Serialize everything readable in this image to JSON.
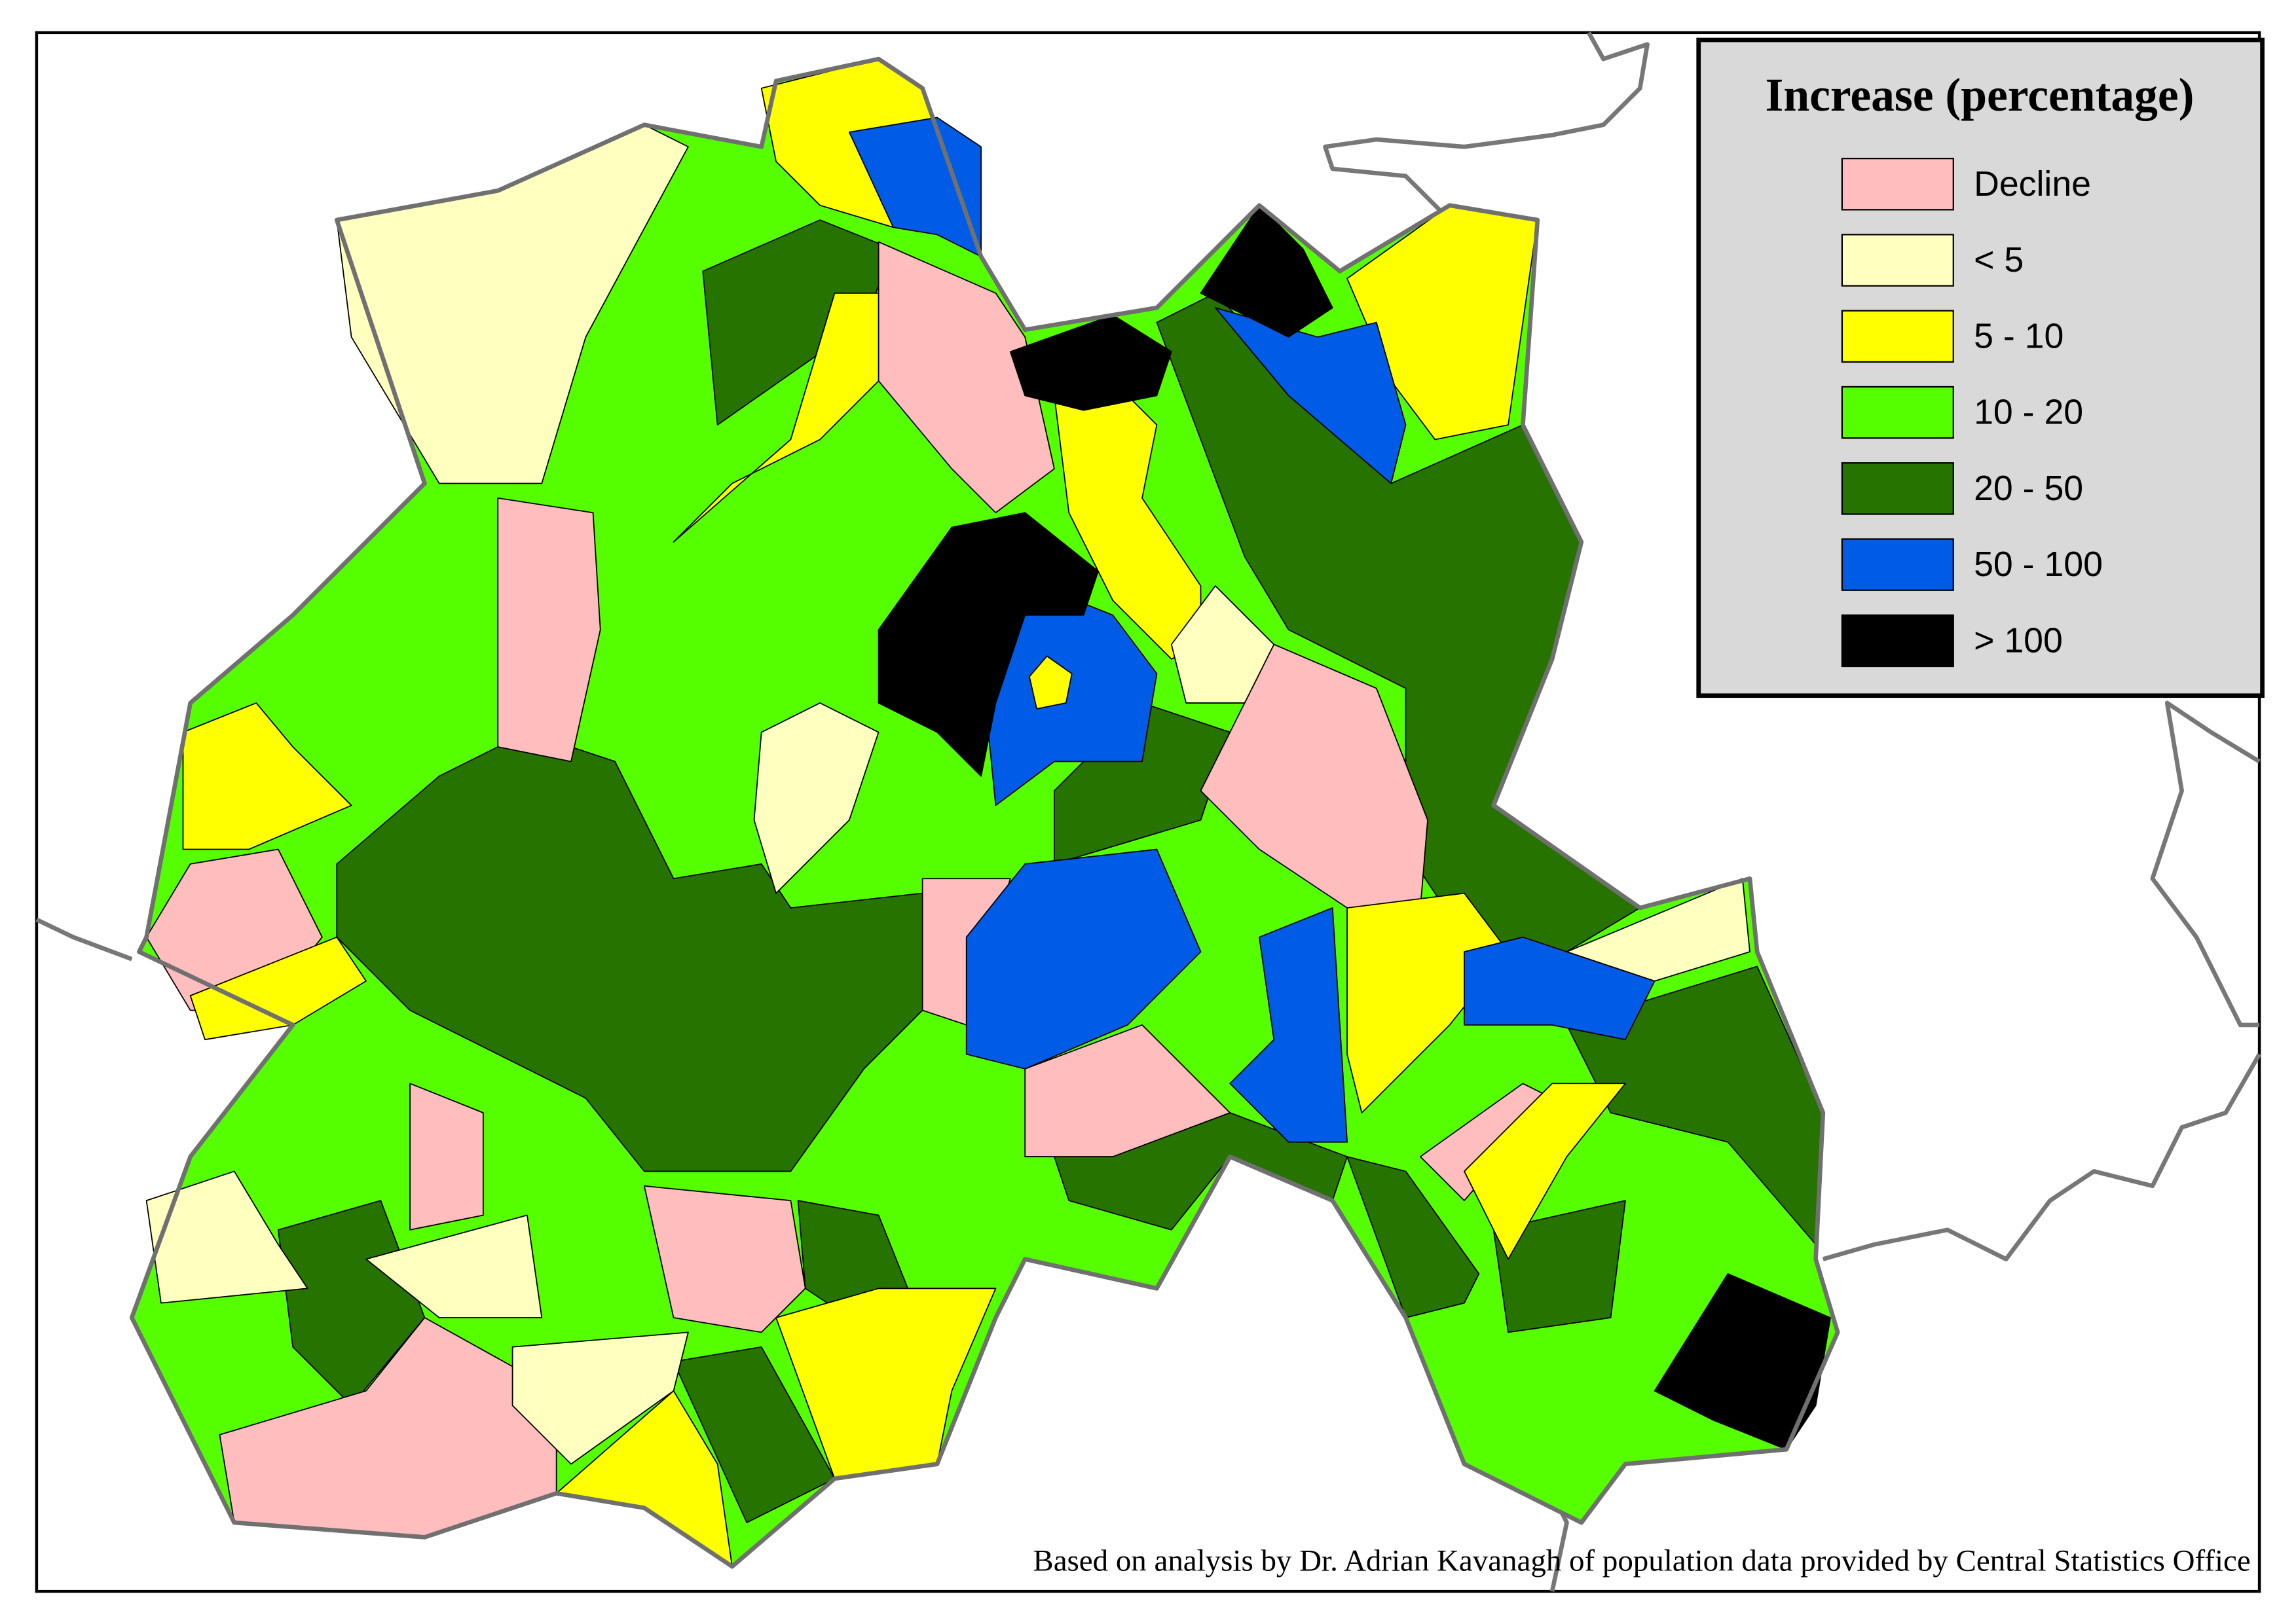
{
  "legend": {
    "title": "Increase (percentage)",
    "items": [
      {
        "label": "Decline",
        "color": "#ffbdbd"
      },
      {
        "label": "< 5",
        "color": "#ffffc0"
      },
      {
        "label": "5 - 10",
        "color": "#ffff00"
      },
      {
        "label": "10 - 20",
        "color": "#55ff00"
      },
      {
        "label": "20 - 50",
        "color": "#267300"
      },
      {
        "label": "50 - 100",
        "color": "#005ce6"
      },
      {
        "label": "> 100",
        "color": "#000000"
      }
    ]
  },
  "credit": "Based on analysis by Dr. Adrian Kavanagh of population data provided by Central Statistics Office"
}
